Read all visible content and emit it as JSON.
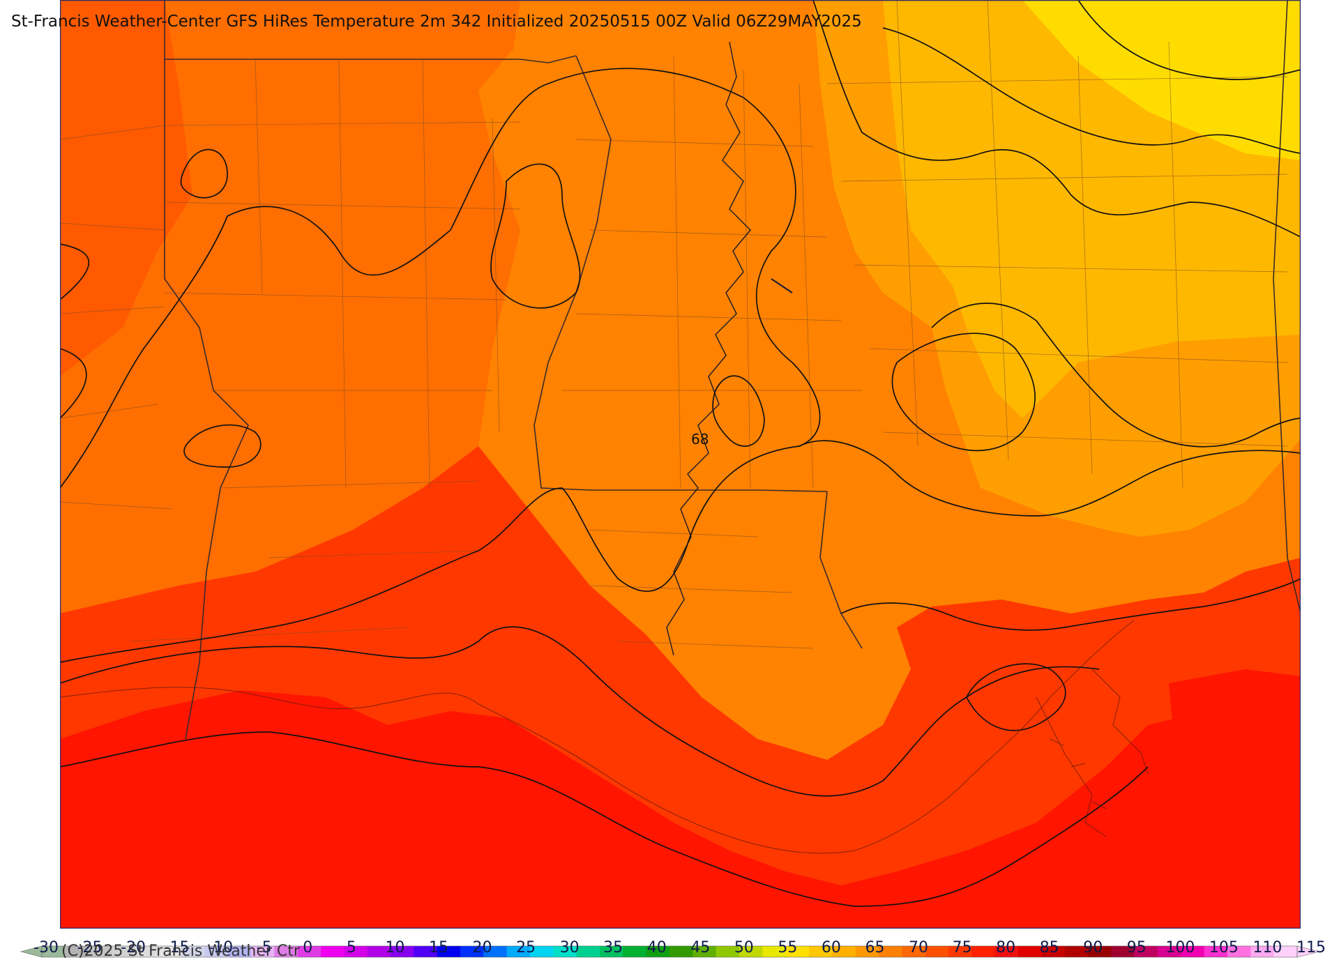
{
  "header": {
    "title": "St-Francis Weather-Center GFS HiRes Temperature 2m  342 Initialized 20250515 00Z Valid 06Z29MAY2025"
  },
  "map": {
    "contour_label": "68",
    "fill_colors": {
      "far_west": "#ff5a00",
      "west": "#ff6e00",
      "central": "#ff8200",
      "east": "#ff9e00",
      "northeast": "#ffb800",
      "far_northeast": "#ffdc00",
      "coast": "#ff3800",
      "gulf": "#ff1500"
    }
  },
  "footer": {
    "copyright": "(C)2025 St Francis Weather Ctr"
  },
  "legend": {
    "ticks": [
      "-30",
      "-25",
      "-20",
      "-15",
      "-10",
      "-5",
      "0",
      "5",
      "10",
      "15",
      "20",
      "25",
      "30",
      "35",
      "40",
      "45",
      "50",
      "55",
      "60",
      "65",
      "70",
      "75",
      "80",
      "85",
      "90",
      "95",
      "100",
      "105",
      "110",
      "115"
    ],
    "colors": [
      "#9ab89a",
      "#b4b4b4",
      "#c4c4c4",
      "#d2d2d2",
      "#dcdcdc",
      "#e4e4e4",
      "#d4d4ea",
      "#c8c8f0",
      "#b4b4f4",
      "#e8b4f4",
      "#e07ce6",
      "#e03ce6",
      "#f000f0",
      "#d400e8",
      "#b000e8",
      "#8800f0",
      "#5000f8",
      "#0000f0",
      "#0030ff",
      "#0070ff",
      "#00aaff",
      "#00d4f0",
      "#00e0c8",
      "#00d090",
      "#00c060",
      "#00b030",
      "#10a010",
      "#309a00",
      "#60b000",
      "#90c800",
      "#c0d800",
      "#e8e800",
      "#ffe000",
      "#ffc800",
      "#ffb000",
      "#ff9800",
      "#ff8000",
      "#ff6800",
      "#ff5000",
      "#ff3800",
      "#ff2000",
      "#f01010",
      "#e00000",
      "#c80000",
      "#b00000",
      "#980000",
      "#a00030",
      "#c00060",
      "#d80090",
      "#f000b0",
      "#ff30d0",
      "#ff70e0",
      "#ffa8f0",
      "#ffd0fa"
    ]
  }
}
